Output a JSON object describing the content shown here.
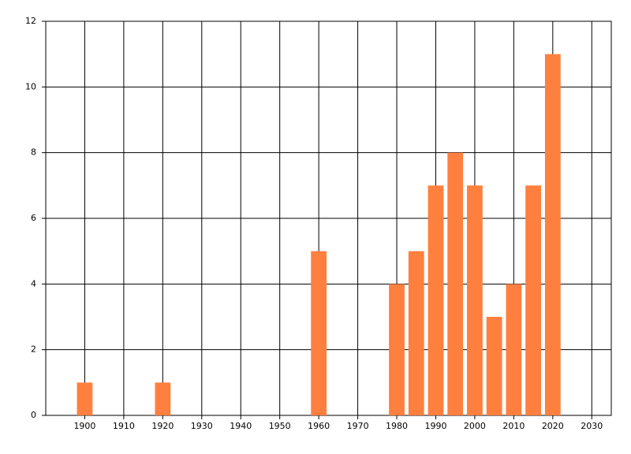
{
  "chart_data": {
    "type": "bar",
    "x": [
      1900,
      1920,
      1960,
      1980,
      1985,
      1990,
      1995,
      2000,
      2005,
      2010,
      2015,
      2020
    ],
    "values": [
      1,
      1,
      5,
      4,
      5,
      7,
      8,
      7,
      3,
      4,
      7,
      11
    ],
    "color": "#ff7f3f",
    "xlim": [
      1890,
      2035
    ],
    "xticks": [
      1900,
      1910,
      1920,
      1930,
      1940,
      1950,
      1960,
      1970,
      1980,
      1990,
      2000,
      2010,
      2020,
      2030
    ],
    "ylim": [
      0,
      12
    ],
    "yticks": [
      0,
      2,
      4,
      6,
      8,
      10,
      12
    ],
    "grid": true
  }
}
